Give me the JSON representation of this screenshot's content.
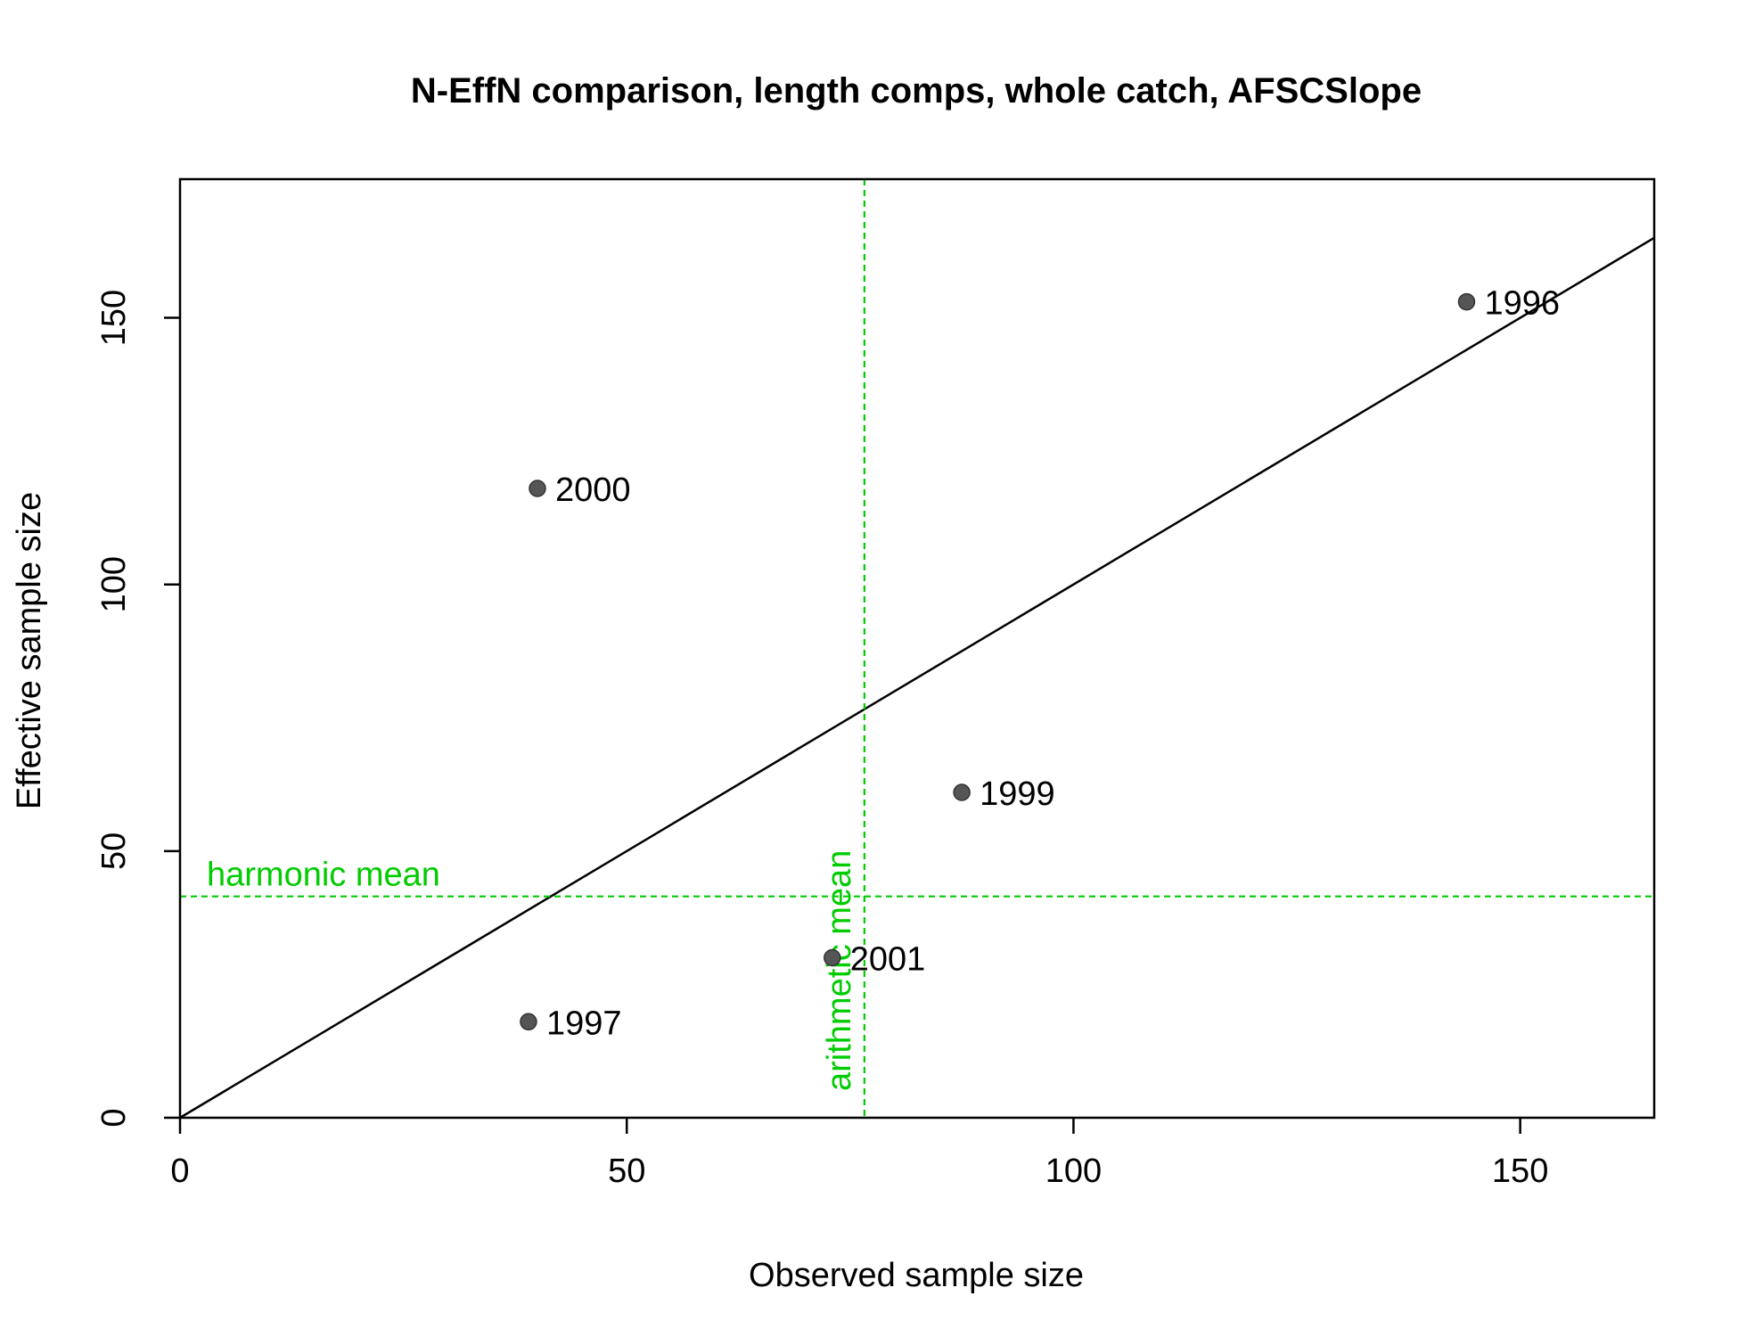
{
  "chart_data": {
    "type": "scatter",
    "title": "N-EffN comparison, length comps, whole catch, AFSCSlope",
    "xlabel": "Observed sample size",
    "ylabel": "Effective sample size",
    "xlim": [
      0,
      165
    ],
    "ylim": [
      0,
      176
    ],
    "x_ticks": [
      0,
      50,
      100,
      150
    ],
    "y_ticks": [
      0,
      50,
      100,
      150
    ],
    "grid": false,
    "points": [
      {
        "label": "1996",
        "x": 144,
        "y": 153
      },
      {
        "label": "2000",
        "x": 40,
        "y": 118
      },
      {
        "label": "1999",
        "x": 87.5,
        "y": 61
      },
      {
        "label": "2001",
        "x": 73,
        "y": 30
      },
      {
        "label": "1997",
        "x": 39,
        "y": 18
      }
    ],
    "point_color": "#555555",
    "reference_line": {
      "type": "y=x",
      "color": "#000000"
    },
    "harmonic_mean": {
      "label": "harmonic mean",
      "value": 41.5,
      "orientation": "horizontal",
      "color": "#00CC00"
    },
    "arithmetic_mean": {
      "label": "arithmetic mean",
      "value": 76.6,
      "orientation": "vertical",
      "color": "#00CC00"
    }
  }
}
